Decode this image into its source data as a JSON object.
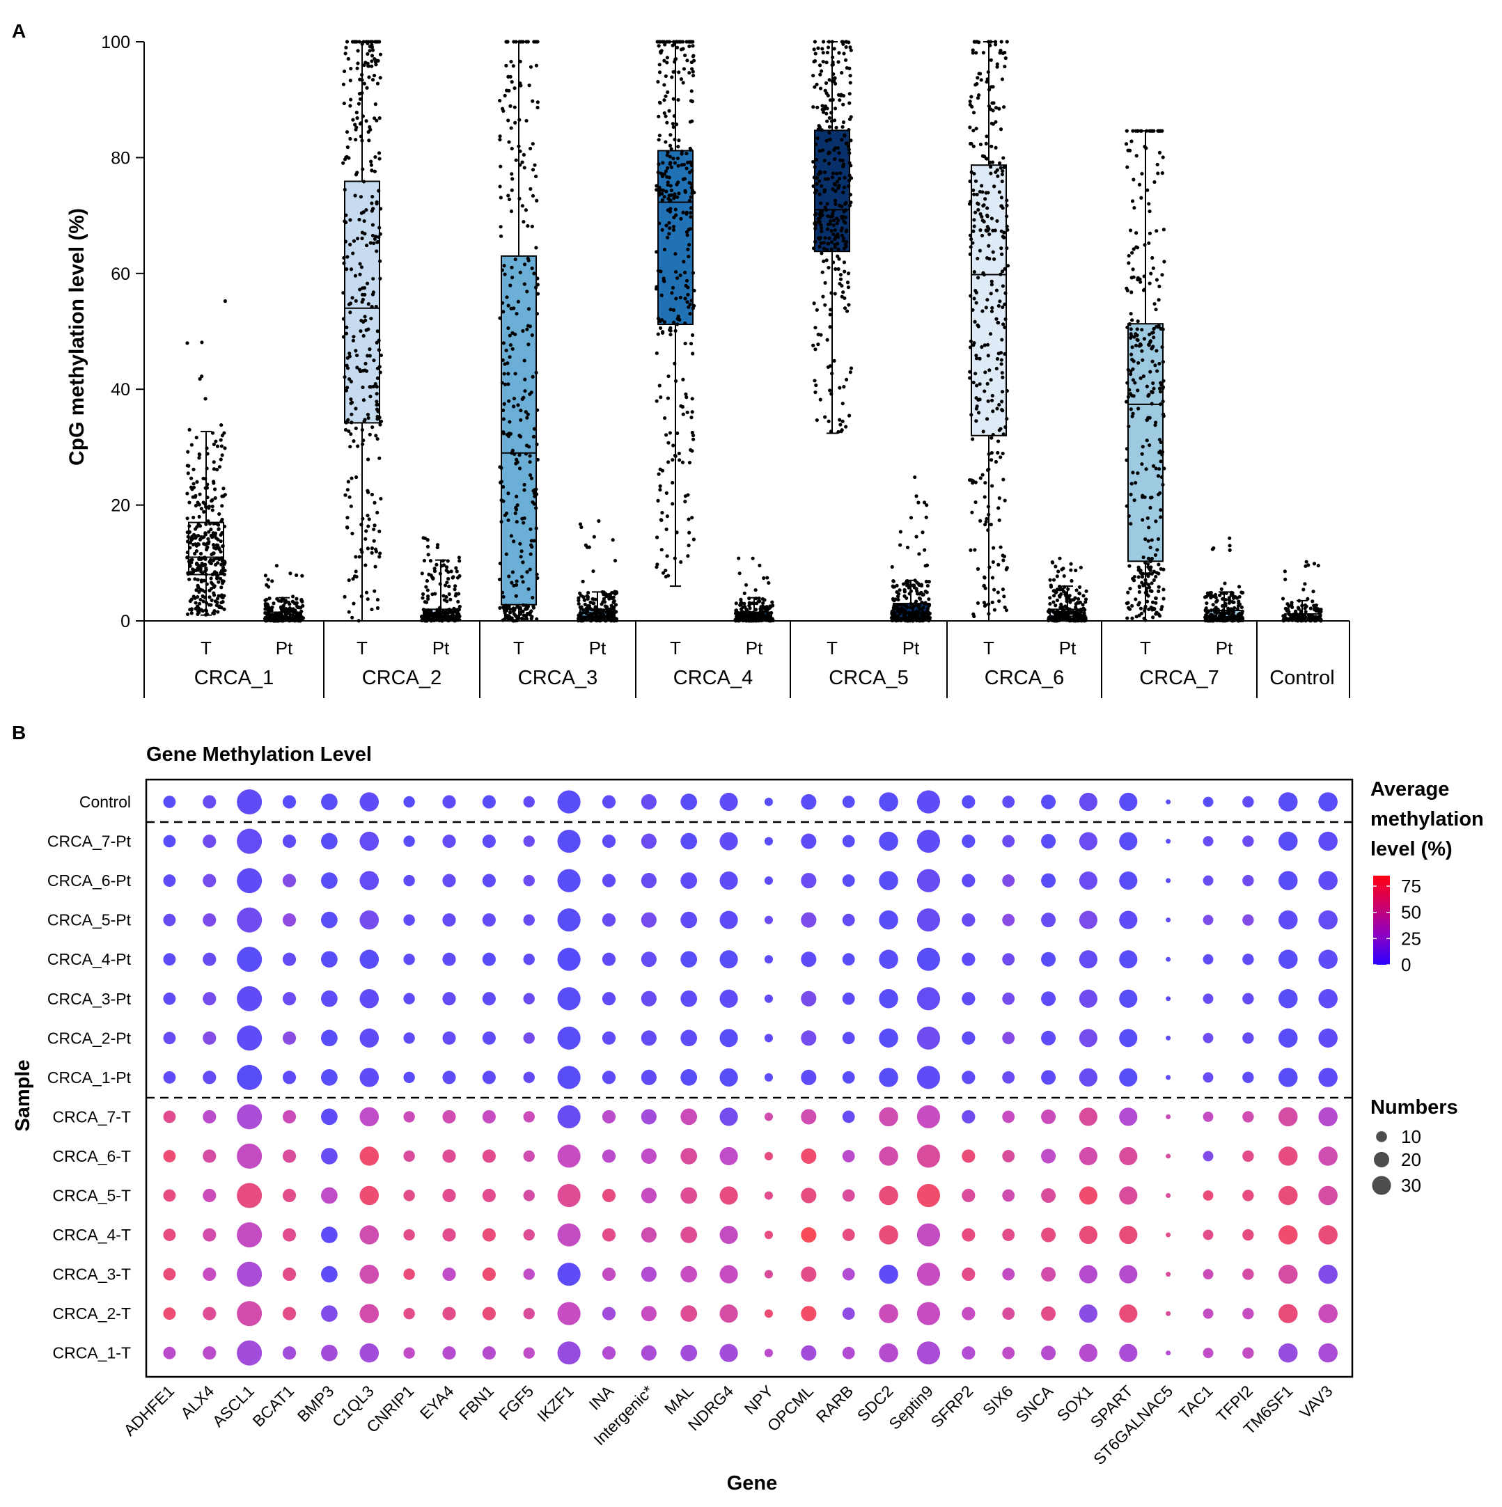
{
  "panel_a": {
    "panel_label": "A",
    "chart_data": {
      "type": "box",
      "ylabel": "CpG methylation level (%)",
      "ylim": [
        0,
        100
      ],
      "yticks": [
        0,
        20,
        40,
        60,
        80,
        100
      ],
      "sublabels": {
        "T": "T",
        "Pt": "Pt"
      },
      "groups": [
        {
          "label": "CRCA_1",
          "color": "#ffffff",
          "T": {
            "min": 1,
            "q1": 8,
            "median": 11,
            "q3": 17,
            "max": 32.7,
            "outlier_max": 58
          },
          "Pt": {
            "min": 0,
            "q1": 0.2,
            "median": 0.6,
            "q3": 1.5,
            "max": 4,
            "outlier_max": 10
          }
        },
        {
          "label": "CRCA_2",
          "color": "#c6dbef",
          "T": {
            "min": 0,
            "q1": 34.2,
            "median": 54,
            "q3": 75.9,
            "max": 100,
            "outlier_max": 100
          },
          "Pt": {
            "min": 0,
            "q1": 0.3,
            "median": 0.8,
            "q3": 2,
            "max": 10.5,
            "outlier_max": 15
          }
        },
        {
          "label": "CRCA_3",
          "color": "#6baed6",
          "T": {
            "min": 0,
            "q1": 2.8,
            "median": 29,
            "q3": 63,
            "max": 100,
            "outlier_max": 100
          },
          "Pt": {
            "min": 0,
            "q1": 0.3,
            "median": 0.8,
            "q3": 2,
            "max": 5,
            "outlier_max": 18
          }
        },
        {
          "label": "CRCA_4",
          "color": "#2171b5",
          "T": {
            "min": 6,
            "q1": 51.2,
            "median": 72.3,
            "q3": 81.2,
            "max": 100,
            "outlier_max": 100
          },
          "Pt": {
            "min": 0,
            "q1": 0.2,
            "median": 0.6,
            "q3": 1.5,
            "max": 4,
            "outlier_max": 11
          }
        },
        {
          "label": "CRCA_5",
          "color": "#08306b",
          "T": {
            "min": 32.4,
            "q1": 63.8,
            "median": 71,
            "q3": 84.7,
            "max": 100,
            "outlier_max": 100
          },
          "Pt": {
            "min": 0,
            "q1": 0.5,
            "median": 1.5,
            "q3": 3,
            "max": 7,
            "outlier_max": 26
          }
        },
        {
          "label": "CRCA_6",
          "color": "#deebf7",
          "T": {
            "min": 0,
            "q1": 32,
            "median": 59.8,
            "q3": 78.7,
            "max": 100,
            "outlier_max": 100
          },
          "Pt": {
            "min": 0,
            "q1": 0.3,
            "median": 0.8,
            "q3": 2,
            "max": 6,
            "outlier_max": 11
          }
        },
        {
          "label": "CRCA_7",
          "color": "#9ecae1",
          "T": {
            "min": 0,
            "q1": 10.3,
            "median": 37.4,
            "q3": 51.3,
            "max": 84.6,
            "outlier_max": 84.6
          },
          "Pt": {
            "min": 0,
            "q1": 0.2,
            "median": 0.6,
            "q3": 1.8,
            "max": 5,
            "outlier_max": 17
          }
        }
      ],
      "control": {
        "label": "Control",
        "stats": {
          "min": 0,
          "q1": 0.2,
          "median": 0.5,
          "q3": 1.2,
          "max": 3.5,
          "outlier_max": 11
        }
      }
    }
  },
  "panel_b": {
    "panel_label": "B",
    "chart_data": {
      "type": "dot",
      "title": "Gene Methylation Level",
      "xlabel": "Gene",
      "ylabel": "Sample",
      "genes": [
        "ADHFE1",
        "ALX4",
        "ASCL1",
        "BCAT1",
        "BMP3",
        "C1QL3",
        "CNRIP1",
        "EYA4",
        "FBN1",
        "FGF5",
        "IKZF1",
        "INA",
        "Intergenic*",
        "MAL",
        "NDRG4",
        "NPY",
        "OPCML",
        "RARB",
        "SDC2",
        "Septin9",
        "SFRP2",
        "SIX6",
        "SNCA",
        "SOX1",
        "SPART",
        "ST6GALNAC5",
        "TAC1",
        "TFPI2",
        "TM6SF1",
        "VAV3"
      ],
      "numbers": [
        13,
        15,
        53,
        15,
        23,
        31,
        11,
        15,
        15,
        11,
        45,
        15,
        20,
        23,
        28,
        6,
        20,
        13,
        31,
        45,
        15,
        13,
        18,
        28,
        28,
        2,
        9,
        11,
        31,
        31
      ],
      "samples": [
        "Control",
        "CRCA_7-Pt",
        "CRCA_6-Pt",
        "CRCA_5-Pt",
        "CRCA_4-Pt",
        "CRCA_3-Pt",
        "CRCA_2-Pt",
        "CRCA_1-Pt",
        "CRCA_7-T",
        "CRCA_6-T",
        "CRCA_5-T",
        "CRCA_4-T",
        "CRCA_3-T",
        "CRCA_2-T",
        "CRCA_1-T"
      ],
      "methylation": [
        [
          4,
          8,
          6,
          3,
          4,
          6,
          3,
          6,
          4,
          6,
          4,
          5,
          8,
          4,
          5,
          4,
          4,
          4,
          4,
          5,
          4,
          6,
          4,
          8,
          4,
          4,
          4,
          6,
          4,
          4
        ],
        [
          4,
          10,
          7,
          6,
          4,
          7,
          4,
          7,
          5,
          9,
          4,
          5,
          9,
          4,
          6,
          4,
          6,
          4,
          4,
          5,
          4,
          9,
          4,
          9,
          4,
          4,
          8,
          9,
          4,
          5
        ],
        [
          5,
          12,
          6,
          16,
          4,
          7,
          6,
          7,
          5,
          9,
          4,
          6,
          8,
          5,
          5,
          5,
          9,
          4,
          4,
          8,
          5,
          15,
          4,
          9,
          4,
          4,
          8,
          10,
          4,
          6
        ],
        [
          8,
          14,
          10,
          20,
          4,
          12,
          6,
          7,
          7,
          8,
          4,
          8,
          12,
          6,
          5,
          9,
          14,
          7,
          4,
          8,
          8,
          18,
          8,
          14,
          5,
          6,
          14,
          16,
          5,
          7
        ],
        [
          5,
          8,
          4,
          7,
          4,
          4,
          5,
          6,
          4,
          6,
          3,
          6,
          7,
          4,
          4,
          5,
          5,
          4,
          4,
          4,
          5,
          10,
          4,
          7,
          4,
          4,
          6,
          6,
          4,
          5
        ],
        [
          6,
          12,
          6,
          9,
          5,
          6,
          5,
          7,
          6,
          9,
          4,
          6,
          8,
          5,
          5,
          6,
          13,
          5,
          4,
          7,
          6,
          12,
          5,
          10,
          4,
          5,
          8,
          7,
          4,
          5
        ],
        [
          8,
          16,
          5,
          18,
          4,
          6,
          6,
          7,
          6,
          12,
          4,
          6,
          7,
          5,
          4,
          6,
          12,
          5,
          4,
          10,
          6,
          17,
          5,
          12,
          4,
          5,
          10,
          7,
          4,
          6
        ],
        [
          5,
          7,
          4,
          5,
          4,
          5,
          4,
          5,
          5,
          7,
          4,
          5,
          6,
          4,
          4,
          5,
          5,
          4,
          4,
          5,
          5,
          9,
          5,
          8,
          4,
          5,
          8,
          6,
          4,
          5
        ],
        [
          60,
          35,
          28,
          45,
          5,
          38,
          45,
          48,
          42,
          45,
          8,
          35,
          25,
          45,
          12,
          50,
          48,
          8,
          48,
          42,
          10,
          42,
          45,
          55,
          30,
          45,
          40,
          48,
          52,
          32
        ],
        [
          70,
          52,
          40,
          55,
          8,
          72,
          55,
          58,
          60,
          48,
          42,
          35,
          38,
          55,
          38,
          65,
          72,
          35,
          50,
          55,
          68,
          55,
          38,
          50,
          55,
          55,
          15,
          62,
          65,
          48
        ],
        [
          65,
          45,
          65,
          62,
          38,
          70,
          62,
          60,
          60,
          52,
          58,
          65,
          42,
          58,
          65,
          60,
          65,
          55,
          68,
          72,
          55,
          48,
          55,
          72,
          55,
          55,
          68,
          65,
          68,
          52
        ],
        [
          65,
          50,
          40,
          60,
          5,
          48,
          62,
          60,
          68,
          58,
          40,
          62,
          48,
          58,
          40,
          65,
          80,
          65,
          68,
          40,
          65,
          62,
          65,
          68,
          68,
          62,
          62,
          65,
          72,
          68
        ],
        [
          68,
          42,
          28,
          62,
          5,
          48,
          68,
          38,
          70,
          38,
          5,
          40,
          30,
          42,
          42,
          55,
          62,
          30,
          5,
          42,
          62,
          40,
          50,
          32,
          32,
          55,
          45,
          52,
          52,
          15
        ],
        [
          70,
          58,
          50,
          62,
          15,
          50,
          62,
          62,
          68,
          55,
          42,
          25,
          42,
          58,
          52,
          70,
          75,
          20,
          45,
          42,
          42,
          55,
          62,
          18,
          68,
          55,
          40,
          42,
          68,
          45
        ],
        [
          35,
          35,
          25,
          25,
          25,
          25,
          38,
          32,
          32,
          38,
          22,
          30,
          28,
          25,
          25,
          35,
          25,
          30,
          32,
          28,
          30,
          38,
          32,
          32,
          28,
          30,
          38,
          40,
          22,
          28
        ]
      ],
      "color_scale": {
        "low": "#0000ff",
        "high": "#ff0000",
        "max": 85
      },
      "color_legend": {
        "title_lines": [
          "Average",
          "methylation",
          "level (%)"
        ],
        "ticks": [
          0,
          25,
          50,
          75
        ]
      },
      "size_legend": {
        "title": "Numbers",
        "values": [
          10,
          20,
          30
        ],
        "color": "#4d4d4d"
      }
    }
  }
}
